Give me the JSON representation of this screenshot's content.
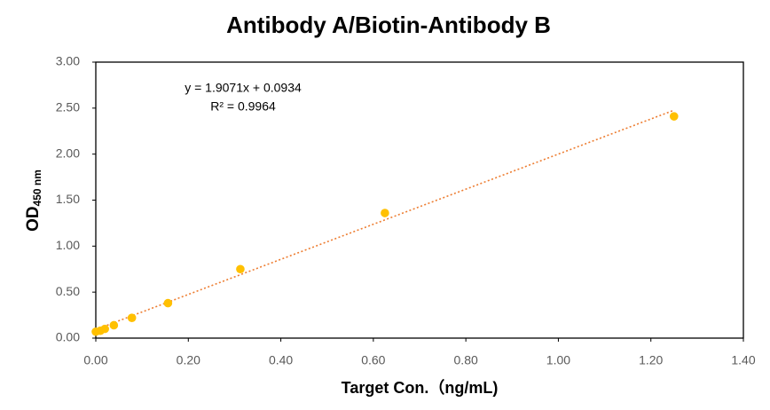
{
  "chart_data": {
    "type": "scatter",
    "title": "Antibody A/Biotin-Antibody B",
    "x_label": "Target Con.（ng/mL)",
    "y_label": "OD",
    "y_label_sub": "450 nm",
    "series": [
      {
        "name": "OD",
        "color": "#ffc000",
        "x": [
          0,
          0.0098,
          0.0195,
          0.039,
          0.078,
          0.156,
          0.3125,
          0.625,
          1.25
        ],
        "values": [
          0.07,
          0.08,
          0.1,
          0.14,
          0.22,
          0.38,
          0.75,
          1.36,
          2.41
        ]
      }
    ],
    "trendline": {
      "slope": 1.9071,
      "intercept": 0.0934,
      "color": "#ed7d31"
    },
    "trendline_equation": "y = 1.9071x + 0.0934",
    "trendline_r2": "R² = 0.9964",
    "xlim": [
      0,
      1.4
    ],
    "xticks": [
      {
        "value": 0,
        "label": "0.00"
      },
      {
        "value": 0.2,
        "label": "0.20"
      },
      {
        "value": 0.4,
        "label": "0.40"
      },
      {
        "value": 0.6,
        "label": "0.60"
      },
      {
        "value": 0.8,
        "label": "0.80"
      },
      {
        "value": 1.0,
        "label": "1.00"
      },
      {
        "value": 1.2,
        "label": "1.20"
      },
      {
        "value": 1.4,
        "label": "1.40"
      }
    ],
    "ylim": [
      0,
      3
    ],
    "yticks": [
      {
        "value": 0,
        "label": "0.00"
      },
      {
        "value": 0.5,
        "label": "0.50"
      },
      {
        "value": 1.0,
        "label": "1.00"
      },
      {
        "value": 1.5,
        "label": "1.50"
      },
      {
        "value": 2.0,
        "label": "2.00"
      },
      {
        "value": 2.5,
        "label": "2.50"
      },
      {
        "value": 3.0,
        "label": "3.00"
      }
    ],
    "grid": false
  }
}
